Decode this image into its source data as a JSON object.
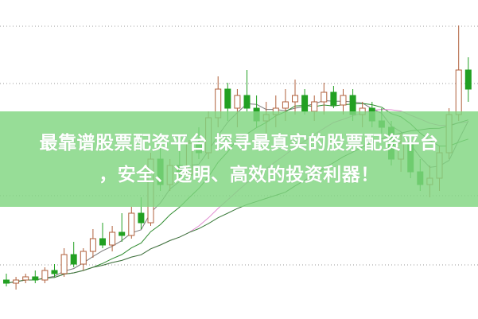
{
  "banner": {
    "line1": "最靠谱股票配资平台 探寻最真实的股票配资平台",
    "line2": "，安全、透明、高效的投资利器！"
  },
  "colors": {
    "up": "#b0603c",
    "down": "#22a022",
    "banner": "#80d680",
    "ma": [
      "#7a7a7a",
      "#2e8b2e",
      "#e08ad0",
      "#3a7a3a"
    ]
  },
  "chart_data": {
    "type": "candlestick",
    "title": "",
    "ohlc": [
      [
        12,
        14,
        10,
        11
      ],
      [
        11,
        13,
        9,
        12
      ],
      [
        12,
        14,
        11,
        13
      ],
      [
        13,
        15,
        11,
        12
      ],
      [
        12,
        16,
        11,
        15
      ],
      [
        15,
        17,
        13,
        14
      ],
      [
        14,
        22,
        13,
        20
      ],
      [
        20,
        24,
        16,
        17
      ],
      [
        17,
        22,
        15,
        21
      ],
      [
        21,
        28,
        19,
        25
      ],
      [
        25,
        30,
        22,
        23
      ],
      [
        23,
        29,
        21,
        27
      ],
      [
        27,
        33,
        24,
        26
      ],
      [
        26,
        35,
        25,
        33
      ],
      [
        33,
        38,
        28,
        30
      ],
      [
        30,
        52,
        29,
        50
      ],
      [
        50,
        55,
        40,
        42
      ],
      [
        42,
        50,
        40,
        48
      ],
      [
        48,
        54,
        44,
        45
      ],
      [
        45,
        56,
        43,
        55
      ],
      [
        55,
        60,
        50,
        52
      ],
      [
        52,
        65,
        50,
        63
      ],
      [
        63,
        76,
        60,
        72
      ],
      [
        72,
        74,
        62,
        66
      ],
      [
        66,
        72,
        60,
        70
      ],
      [
        70,
        78,
        65,
        66
      ],
      [
        66,
        70,
        60,
        62
      ],
      [
        62,
        68,
        58,
        64
      ],
      [
        64,
        70,
        60,
        66
      ],
      [
        66,
        72,
        62,
        68
      ],
      [
        68,
        75,
        64,
        70
      ],
      [
        70,
        72,
        64,
        65
      ],
      [
        65,
        70,
        62,
        68
      ],
      [
        68,
        74,
        64,
        71
      ],
      [
        71,
        73,
        66,
        67
      ],
      [
        67,
        72,
        64,
        70
      ],
      [
        70,
        72,
        62,
        64
      ],
      [
        64,
        68,
        60,
        66
      ],
      [
        66,
        68,
        60,
        62
      ],
      [
        62,
        66,
        58,
        60
      ],
      [
        60,
        62,
        48,
        50
      ],
      [
        50,
        58,
        46,
        55
      ],
      [
        55,
        57,
        44,
        46
      ],
      [
        46,
        50,
        40,
        42
      ],
      [
        42,
        48,
        38,
        44
      ],
      [
        44,
        54,
        40,
        52
      ],
      [
        52,
        66,
        50,
        64
      ],
      [
        64,
        92,
        62,
        78
      ],
      [
        78,
        82,
        68,
        72
      ]
    ],
    "moving_averages": [
      5,
      10,
      20,
      30
    ],
    "grid": "horizontal-dotted",
    "axes": "none"
  }
}
